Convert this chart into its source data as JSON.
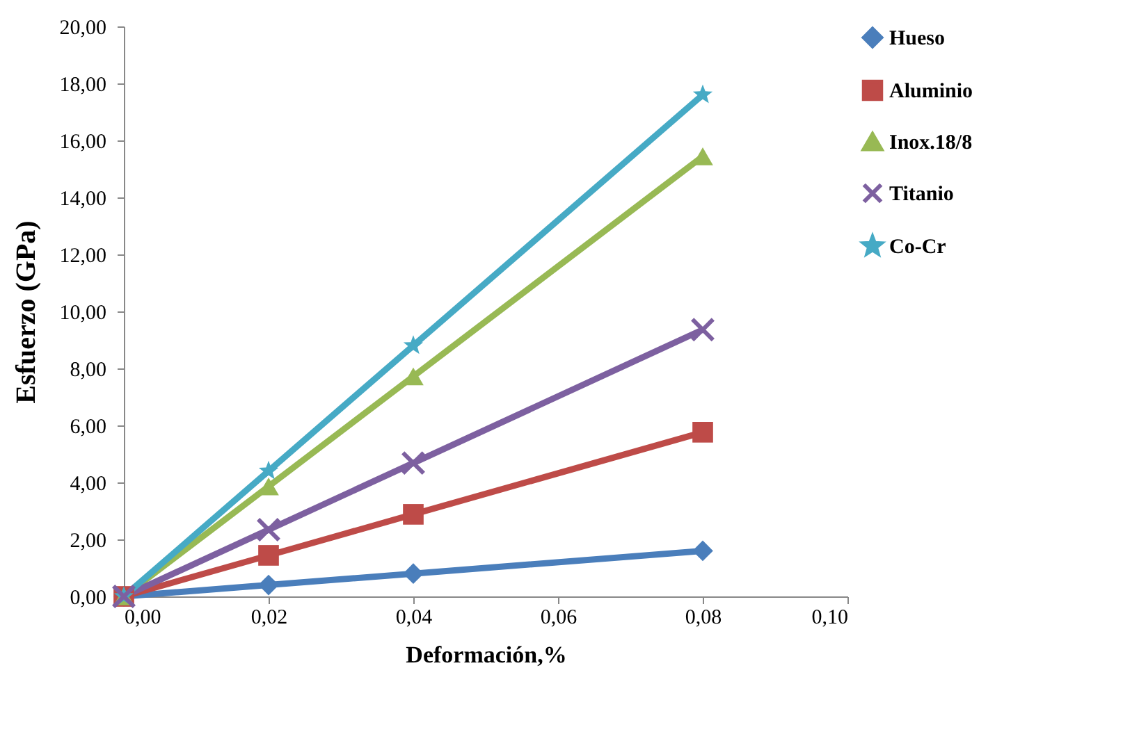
{
  "chart_data": {
    "type": "line",
    "xlabel": "Deformación,%",
    "ylabel": "Esfuerzo (GPa)",
    "x": [
      0,
      0.02,
      0.04,
      0.08
    ],
    "series": [
      {
        "name": "Hueso",
        "color": "#4a7ebb",
        "marker": "diamond",
        "values": [
          0,
          0.4,
          0.8,
          1.6
        ]
      },
      {
        "name": "Aluminio",
        "color": "#be4b48",
        "marker": "square",
        "values": [
          0,
          1.44,
          2.88,
          5.76
        ]
      },
      {
        "name": "Inox.18/8",
        "color": "#98b954",
        "marker": "triangle",
        "values": [
          0,
          3.86,
          7.72,
          15.44
        ]
      },
      {
        "name": "Titanio",
        "color": "#7d60a0",
        "marker": "cross",
        "values": [
          0,
          2.34,
          4.68,
          9.36
        ]
      },
      {
        "name": "Co-Cr",
        "color": "#46aac5",
        "marker": "star",
        "values": [
          0,
          4.4,
          8.8,
          17.6
        ]
      }
    ],
    "xlim": [
      0,
      0.1
    ],
    "ylim": [
      0,
      20
    ],
    "xticks": [
      {
        "value": 0,
        "label": "0,00"
      },
      {
        "value": 0.02,
        "label": "0,02"
      },
      {
        "value": 0.04,
        "label": "0,04"
      },
      {
        "value": 0.06,
        "label": "0,06"
      },
      {
        "value": 0.08,
        "label": "0,08"
      },
      {
        "value": 0.1,
        "label": "0,10"
      }
    ],
    "yticks": [
      {
        "value": 0,
        "label": "0,00"
      },
      {
        "value": 2,
        "label": "2,00"
      },
      {
        "value": 4,
        "label": "4,00"
      },
      {
        "value": 6,
        "label": "6,00"
      },
      {
        "value": 8,
        "label": "8,00"
      },
      {
        "value": 10,
        "label": "10,00"
      },
      {
        "value": 12,
        "label": "12,00"
      },
      {
        "value": 14,
        "label": "14,00"
      },
      {
        "value": 16,
        "label": "16,00"
      },
      {
        "value": 18,
        "label": "18,00"
      },
      {
        "value": 20,
        "label": "20,00"
      }
    ],
    "grid": false,
    "legend": "top right",
    "line_style": "solid"
  }
}
